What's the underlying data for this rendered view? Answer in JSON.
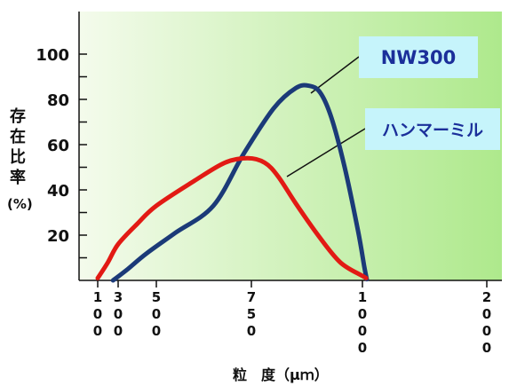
{
  "chart_data": {
    "type": "line",
    "title": "",
    "xlabel": "粒　度（μｍ）",
    "ylabel_chars": [
      "存",
      "在",
      "比",
      "率"
    ],
    "ylabel_unit": "(%)",
    "x_ticks": [
      100,
      300,
      500,
      750,
      1000,
      2000
    ],
    "x_tick_labels": [
      "100",
      "300",
      "500",
      "750",
      "1000",
      "2000"
    ],
    "y_ticks": [
      20,
      40,
      60,
      80,
      100
    ],
    "y_tick_labels": [
      "20",
      "40",
      "60",
      "80",
      "100"
    ],
    "grid": false,
    "series": [
      {
        "name": "NW300",
        "color": "#1b3a78",
        "points": [
          [
            250,
            0
          ],
          [
            350,
            5
          ],
          [
            450,
            12
          ],
          [
            550,
            21
          ],
          [
            650,
            33
          ],
          [
            730,
            56
          ],
          [
            800,
            76
          ],
          [
            850,
            85
          ],
          [
            880,
            86
          ],
          [
            905,
            83
          ],
          [
            930,
            72
          ],
          [
            960,
            50
          ],
          [
            990,
            22
          ],
          [
            1015,
            6
          ],
          [
            1035,
            0.5
          ]
        ]
      },
      {
        "name": "ハンマーミル",
        "color": "#e21a14",
        "points": [
          [
            100,
            1
          ],
          [
            200,
            8
          ],
          [
            300,
            16
          ],
          [
            400,
            25
          ],
          [
            500,
            33
          ],
          [
            600,
            44
          ],
          [
            680,
            52
          ],
          [
            740,
            54
          ],
          [
            780,
            52
          ],
          [
            810,
            46
          ],
          [
            850,
            34
          ],
          [
            900,
            20
          ],
          [
            950,
            8
          ],
          [
            1000,
            2
          ],
          [
            1030,
            1
          ]
        ]
      }
    ],
    "legend": {
      "nw300_label": "NW300",
      "hammer_label": "ハンマーミル"
    },
    "ylim": [
      0,
      110
    ],
    "xlim": [
      100,
      2000
    ]
  },
  "colors": {
    "plot_gradient_start": "#f4fbec",
    "plot_gradient_end": "#aee98c",
    "legend_box": "#c6f4fb",
    "legend_text": "#1b2f9a",
    "axis": "#111111"
  }
}
